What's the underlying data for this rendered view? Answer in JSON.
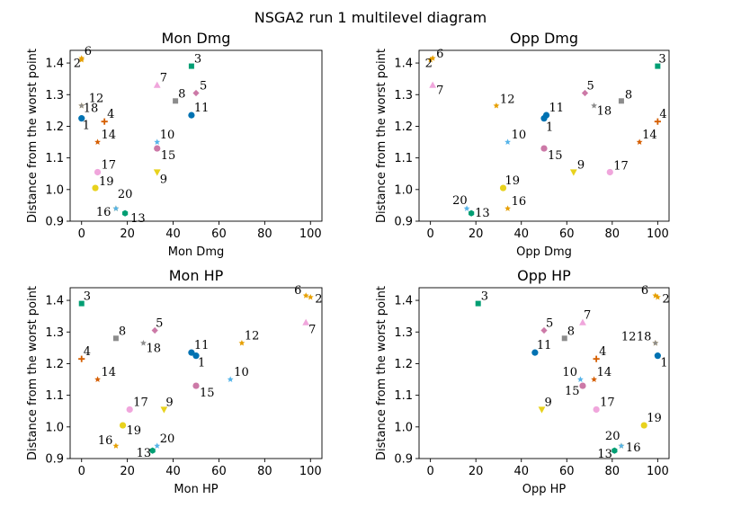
{
  "figure": {
    "title": "NSGA2 run 1 multilevel diagram"
  },
  "colors": {
    "1": "#0072b2",
    "2": "#e69f00",
    "3": "#009e73",
    "4": "#d55e00",
    "5": "#cc79a7",
    "6": "#e69f00",
    "7": "#f0a6dc",
    "8": "#8c8c8c",
    "9": "#e8d21d",
    "10": "#56b4e9",
    "11": "#0072b2",
    "12": "#e69f00",
    "13": "#009e73",
    "14": "#d55e00",
    "15": "#cc79a7",
    "16": "#e69f00",
    "17": "#f0a6dc",
    "18": "#8c8c8c",
    "19": "#e8d21d",
    "20": "#56b4e9"
  },
  "markers": {
    "1": "circle",
    "2": "star",
    "3": "square",
    "4": "plus",
    "5": "diamond",
    "6": "star",
    "7": "triangle-up",
    "8": "square",
    "9": "triangle-down",
    "10": "star",
    "11": "circle",
    "12": "star",
    "13": "hexagon",
    "14": "star",
    "15": "circle",
    "16": "star",
    "17": "circle",
    "18": "star",
    "19": "circle",
    "20": "star"
  },
  "chart_data": [
    {
      "type": "scatter",
      "title": "Mon Dmg",
      "xlabel": "Mon Dmg",
      "ylabel": "Distance from the worst point",
      "xlim": [
        -5,
        105
      ],
      "ylim": [
        0.9,
        1.44
      ],
      "xticks": [
        "0",
        "20",
        "40",
        "60",
        "80",
        "100"
      ],
      "yticks": [
        "0.9",
        "1.0",
        "1.1",
        "1.2",
        "1.3",
        "1.4"
      ],
      "points": [
        {
          "label": "1",
          "x": 0,
          "y": 1.225
        },
        {
          "label": "2",
          "x": 0,
          "y": 1.41
        },
        {
          "label": "3",
          "x": 48,
          "y": 1.39
        },
        {
          "label": "4",
          "x": 10,
          "y": 1.215
        },
        {
          "label": "5",
          "x": 50,
          "y": 1.305
        },
        {
          "label": "6",
          "x": 0,
          "y": 1.415
        },
        {
          "label": "7",
          "x": 33,
          "y": 1.33
        },
        {
          "label": "8",
          "x": 41,
          "y": 1.28
        },
        {
          "label": "9",
          "x": 33,
          "y": 1.055
        },
        {
          "label": "10",
          "x": 33,
          "y": 1.15
        },
        {
          "label": "11",
          "x": 48,
          "y": 1.235
        },
        {
          "label": "12",
          "x": 0,
          "y": 1.265
        },
        {
          "label": "13",
          "x": 19,
          "y": 0.925
        },
        {
          "label": "14",
          "x": 7,
          "y": 1.15
        },
        {
          "label": "15",
          "x": 33,
          "y": 1.13
        },
        {
          "label": "16",
          "x": 15,
          "y": 0.94
        },
        {
          "label": "17",
          "x": 7,
          "y": 1.055
        },
        {
          "label": "18",
          "x": 0,
          "y": 1.265
        },
        {
          "label": "19",
          "x": 6,
          "y": 1.005
        },
        {
          "label": "20",
          "x": 15,
          "y": 0.94
        }
      ]
    },
    {
      "type": "scatter",
      "title": "Opp Dmg",
      "xlabel": "Opp Dmg",
      "ylabel": "Distance from the worst point",
      "xlim": [
        -5,
        105
      ],
      "ylim": [
        0.9,
        1.44
      ],
      "xticks": [
        "0",
        "20",
        "40",
        "60",
        "80",
        "100"
      ],
      "yticks": [
        "0.9",
        "1.0",
        "1.1",
        "1.2",
        "1.3",
        "1.4"
      ],
      "points": [
        {
          "label": "1",
          "x": 50,
          "y": 1.225
        },
        {
          "label": "2",
          "x": 0,
          "y": 1.41
        },
        {
          "label": "3",
          "x": 100,
          "y": 1.39
        },
        {
          "label": "4",
          "x": 100,
          "y": 1.215
        },
        {
          "label": "5",
          "x": 68,
          "y": 1.305
        },
        {
          "label": "6",
          "x": 1,
          "y": 1.415
        },
        {
          "label": "7",
          "x": 1,
          "y": 1.33
        },
        {
          "label": "8",
          "x": 84,
          "y": 1.28
        },
        {
          "label": "9",
          "x": 63,
          "y": 1.055
        },
        {
          "label": "10",
          "x": 34,
          "y": 1.15
        },
        {
          "label": "11",
          "x": 51,
          "y": 1.235
        },
        {
          "label": "12",
          "x": 29,
          "y": 1.265
        },
        {
          "label": "13",
          "x": 18,
          "y": 0.925
        },
        {
          "label": "14",
          "x": 92,
          "y": 1.15
        },
        {
          "label": "15",
          "x": 50,
          "y": 1.13
        },
        {
          "label": "16",
          "x": 34,
          "y": 0.94
        },
        {
          "label": "17",
          "x": 79,
          "y": 1.055
        },
        {
          "label": "18",
          "x": 72,
          "y": 1.265
        },
        {
          "label": "19",
          "x": 32,
          "y": 1.005
        },
        {
          "label": "20",
          "x": 16,
          "y": 0.94
        }
      ]
    },
    {
      "type": "scatter",
      "title": "Mon HP",
      "xlabel": "Mon HP",
      "ylabel": "Distance from the worst point",
      "xlim": [
        -5,
        105
      ],
      "ylim": [
        0.9,
        1.44
      ],
      "xticks": [
        "0",
        "20",
        "40",
        "60",
        "80",
        "100"
      ],
      "yticks": [
        "0.9",
        "1.0",
        "1.1",
        "1.2",
        "1.3",
        "1.4"
      ],
      "points": [
        {
          "label": "1",
          "x": 50,
          "y": 1.225
        },
        {
          "label": "2",
          "x": 100,
          "y": 1.41
        },
        {
          "label": "3",
          "x": 0,
          "y": 1.39
        },
        {
          "label": "4",
          "x": 0,
          "y": 1.215
        },
        {
          "label": "5",
          "x": 32,
          "y": 1.305
        },
        {
          "label": "6",
          "x": 98,
          "y": 1.415
        },
        {
          "label": "7",
          "x": 98,
          "y": 1.33
        },
        {
          "label": "8",
          "x": 15,
          "y": 1.28
        },
        {
          "label": "9",
          "x": 36,
          "y": 1.055
        },
        {
          "label": "10",
          "x": 65,
          "y": 1.15
        },
        {
          "label": "11",
          "x": 48,
          "y": 1.235
        },
        {
          "label": "12",
          "x": 70,
          "y": 1.265
        },
        {
          "label": "13",
          "x": 31,
          "y": 0.925
        },
        {
          "label": "14",
          "x": 7,
          "y": 1.15
        },
        {
          "label": "15",
          "x": 50,
          "y": 1.13
        },
        {
          "label": "16",
          "x": 15,
          "y": 0.94
        },
        {
          "label": "17",
          "x": 21,
          "y": 1.055
        },
        {
          "label": "18",
          "x": 27,
          "y": 1.265
        },
        {
          "label": "19",
          "x": 18,
          "y": 1.005
        },
        {
          "label": "20",
          "x": 33,
          "y": 0.94
        }
      ]
    },
    {
      "type": "scatter",
      "title": "Opp HP",
      "xlabel": "Opp HP",
      "ylabel": "Distance from the worst point",
      "xlim": [
        -5,
        105
      ],
      "ylim": [
        0.9,
        1.44
      ],
      "xticks": [
        "0",
        "20",
        "40",
        "60",
        "80",
        "100"
      ],
      "yticks": [
        "0.9",
        "1.0",
        "1.1",
        "1.2",
        "1.3",
        "1.4"
      ],
      "points": [
        {
          "label": "1",
          "x": 100,
          "y": 1.225
        },
        {
          "label": "2",
          "x": 100,
          "y": 1.41
        },
        {
          "label": "3",
          "x": 21,
          "y": 1.39
        },
        {
          "label": "4",
          "x": 73,
          "y": 1.215
        },
        {
          "label": "5",
          "x": 50,
          "y": 1.305
        },
        {
          "label": "6",
          "x": 99,
          "y": 1.415
        },
        {
          "label": "7",
          "x": 67,
          "y": 1.33
        },
        {
          "label": "8",
          "x": 59,
          "y": 1.28
        },
        {
          "label": "9",
          "x": 49,
          "y": 1.055
        },
        {
          "label": "10",
          "x": 66,
          "y": 1.15
        },
        {
          "label": "11",
          "x": 46,
          "y": 1.235
        },
        {
          "label": "12",
          "x": 99,
          "y": 1.265
        },
        {
          "label": "13",
          "x": 81,
          "y": 0.925
        },
        {
          "label": "14",
          "x": 72,
          "y": 1.15
        },
        {
          "label": "15",
          "x": 67,
          "y": 1.13
        },
        {
          "label": "16",
          "x": 84,
          "y": 0.94
        },
        {
          "label": "17",
          "x": 73,
          "y": 1.055
        },
        {
          "label": "18",
          "x": 99,
          "y": 1.265
        },
        {
          "label": "19",
          "x": 94,
          "y": 1.005
        },
        {
          "label": "20",
          "x": 84,
          "y": 0.94
        }
      ]
    }
  ]
}
